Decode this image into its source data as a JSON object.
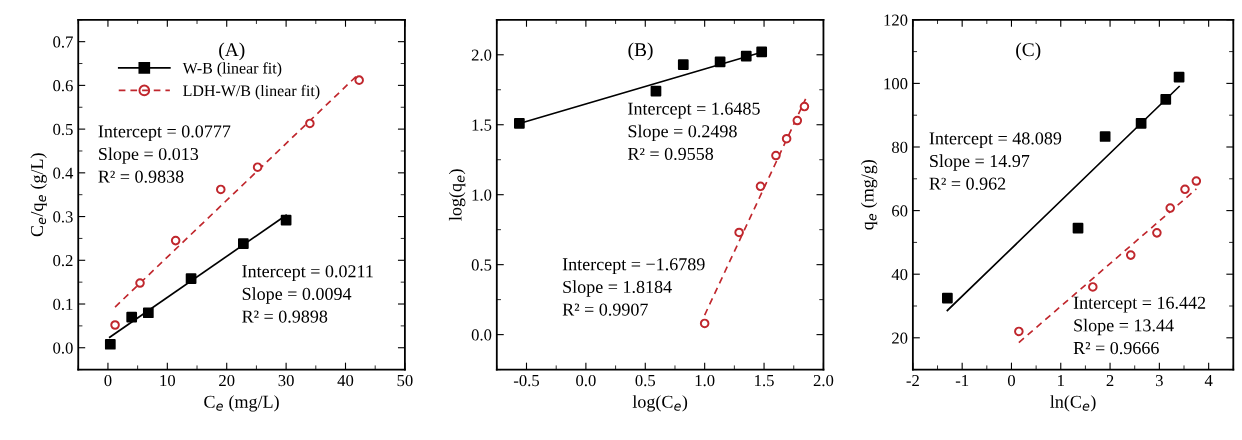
{
  "chart_data": [
    {
      "type": "scatter",
      "title": "(A)",
      "xlabel": "C$_{e}$ (mg/L)",
      "ylabel": "C$_{e}$/q$_{e}$ (g/L)",
      "xlim": [
        -5,
        50
      ],
      "ylim": [
        -0.05,
        0.75
      ],
      "xticks": [
        0,
        10,
        20,
        30,
        40,
        50
      ],
      "yticks": [
        {
          "value": 0.0,
          "label": "0.0"
        },
        0.1,
        0.2,
        0.3,
        0.4,
        0.5,
        0.6,
        0.7
      ],
      "legend": "top left",
      "grid": false,
      "series": [
        {
          "name": "W-B (linear fit)",
          "marker": "square",
          "color": "#000000",
          "x": [
            0.4,
            4,
            6.8,
            14,
            22.8,
            30
          ],
          "values": [
            0.008,
            0.07,
            0.08,
            0.158,
            0.238,
            0.292
          ]
        },
        {
          "type": "line",
          "line_style": "solid",
          "color": "#000000",
          "x": [
            0.3,
            30
          ],
          "values": [
            0.024,
            0.303
          ]
        },
        {
          "name": "LDH-W/B (linear fit)",
          "marker": "circle",
          "color": "#c0272d",
          "x": [
            1.2,
            5.4,
            11.4,
            19,
            25.2,
            34,
            42.3
          ],
          "values": [
            0.052,
            0.148,
            0.245,
            0.362,
            0.413,
            0.513,
            0.612
          ]
        },
        {
          "type": "line",
          "line_style": "dashed",
          "color": "#c0272d",
          "x": [
            1.2,
            42.3
          ],
          "values": [
            0.093,
            0.627
          ]
        }
      ],
      "annotations": [
        "Intercept = 0.0777\nSlope = 0.013\nR² = 0.9838",
        "Intercept = 0.0211\nSlope = 0.0094\nR² = 0.9898"
      ]
    },
    {
      "type": "scatter",
      "title": "(B)",
      "xlabel": "log(C$_{e}$)",
      "ylabel": "log(q$_{e}$)",
      "xlim": [
        -0.75,
        2.0
      ],
      "ylim": [
        -0.25,
        2.25
      ],
      "xticks": [
        -0.5,
        {
          "value": 0.0,
          "label": "0.0"
        },
        0.5,
        {
          "value": 1.0,
          "label": "1.0"
        },
        1.5,
        {
          "value": 2.0,
          "label": "2.0"
        }
      ],
      "yticks": [
        {
          "value": 0.0,
          "label": "0.0"
        },
        0.5,
        {
          "value": 1.0,
          "label": "1.0"
        },
        1.5,
        {
          "value": 2.0,
          "label": "2.0"
        }
      ],
      "grid": false,
      "series": [
        {
          "marker": "square",
          "color": "#000000",
          "x": [
            -0.56,
            0.59,
            0.82,
            1.13,
            1.35,
            1.48
          ],
          "values": [
            1.51,
            1.74,
            1.93,
            1.95,
            1.99,
            2.02
          ]
        },
        {
          "type": "line",
          "line_style": "solid",
          "color": "#000000",
          "x": [
            -0.56,
            1.48
          ],
          "values": [
            1.509,
            2.018
          ]
        },
        {
          "marker": "circle",
          "color": "#c0272d",
          "x": [
            1.0,
            1.29,
            1.47,
            1.6,
            1.69,
            1.78,
            1.84
          ],
          "values": [
            0.08,
            0.73,
            1.06,
            1.28,
            1.4,
            1.53,
            1.63
          ]
        },
        {
          "type": "line",
          "line_style": "dashed",
          "color": "#c0272d",
          "x": [
            1.0,
            1.85
          ],
          "values": [
            0.14,
            1.685
          ]
        }
      ],
      "annotations": [
        "Intercept = 1.6485\nSlope = 0.2498\nR² = 0.9558",
        "Intercept = −1.6789\nSlope = 1.8184\nR² = 0.9907"
      ]
    },
    {
      "type": "scatter",
      "title": "(C)",
      "xlabel": "ln(C$_{e}$)",
      "ylabel": "q$_{e}$ (mg/g)",
      "xlim": [
        -2,
        4.5
      ],
      "ylim": [
        10,
        120
      ],
      "xticks": [
        -2,
        -1,
        0,
        1,
        2,
        3,
        4
      ],
      "yticks": [
        20,
        40,
        60,
        80,
        100,
        120
      ],
      "grid": false,
      "series": [
        {
          "marker": "square",
          "color": "#000000",
          "x": [
            -1.3,
            1.35,
            1.9,
            2.63,
            3.13,
            3.4
          ],
          "values": [
            32.5,
            54.5,
            83.3,
            87.4,
            95,
            102
          ]
        },
        {
          "type": "line",
          "line_style": "solid",
          "color": "#000000",
          "x": [
            -1.3,
            3.4
          ],
          "values": [
            28.6,
            99.0
          ]
        },
        {
          "marker": "circle",
          "color": "#c0272d",
          "x": [
            0.15,
            1.65,
            2.42,
            2.95,
            3.22,
            3.52,
            3.75
          ],
          "values": [
            22,
            36,
            46,
            53,
            60.8,
            66.7,
            69.3
          ]
        },
        {
          "type": "line",
          "line_style": "dashed",
          "color": "#c0272d",
          "x": [
            0.15,
            3.75
          ],
          "values": [
            18.5,
            66.8
          ]
        }
      ],
      "annotations": [
        "Intercept = 48.089\nSlope = 14.97\nR² = 0.962",
        "Intercept = 16.442\nSlope = 13.44\nR² = 0.9666"
      ]
    }
  ]
}
